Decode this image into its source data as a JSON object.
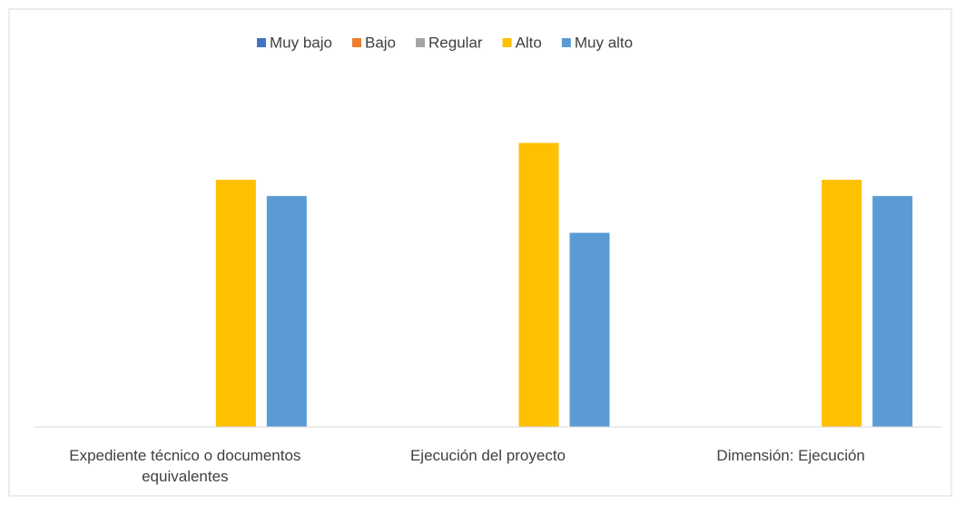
{
  "chart_data": {
    "type": "bar",
    "categories": [
      "Expediente técnico o documentos equivalentes",
      "Ejecución del proyecto",
      "Dimensión: Ejecución"
    ],
    "series": [
      {
        "name": "Muy bajo",
        "color": "#4472c4",
        "values": [
          0,
          0,
          0
        ]
      },
      {
        "name": "Bajo",
        "color": "#ed7d31",
        "values": [
          0,
          0,
          0
        ]
      },
      {
        "name": "Regular",
        "color": "#a5a5a5",
        "values": [
          0,
          0,
          0
        ]
      },
      {
        "name": "Alto",
        "color": "#ffc000",
        "values": [
          51.7,
          59.4,
          51.7
        ]
      },
      {
        "name": "Muy alto",
        "color": "#5b9bd5",
        "values": [
          48.3,
          40.6,
          48.3
        ]
      }
    ],
    "ylim": [
      0,
      76
    ],
    "legend": "top"
  }
}
